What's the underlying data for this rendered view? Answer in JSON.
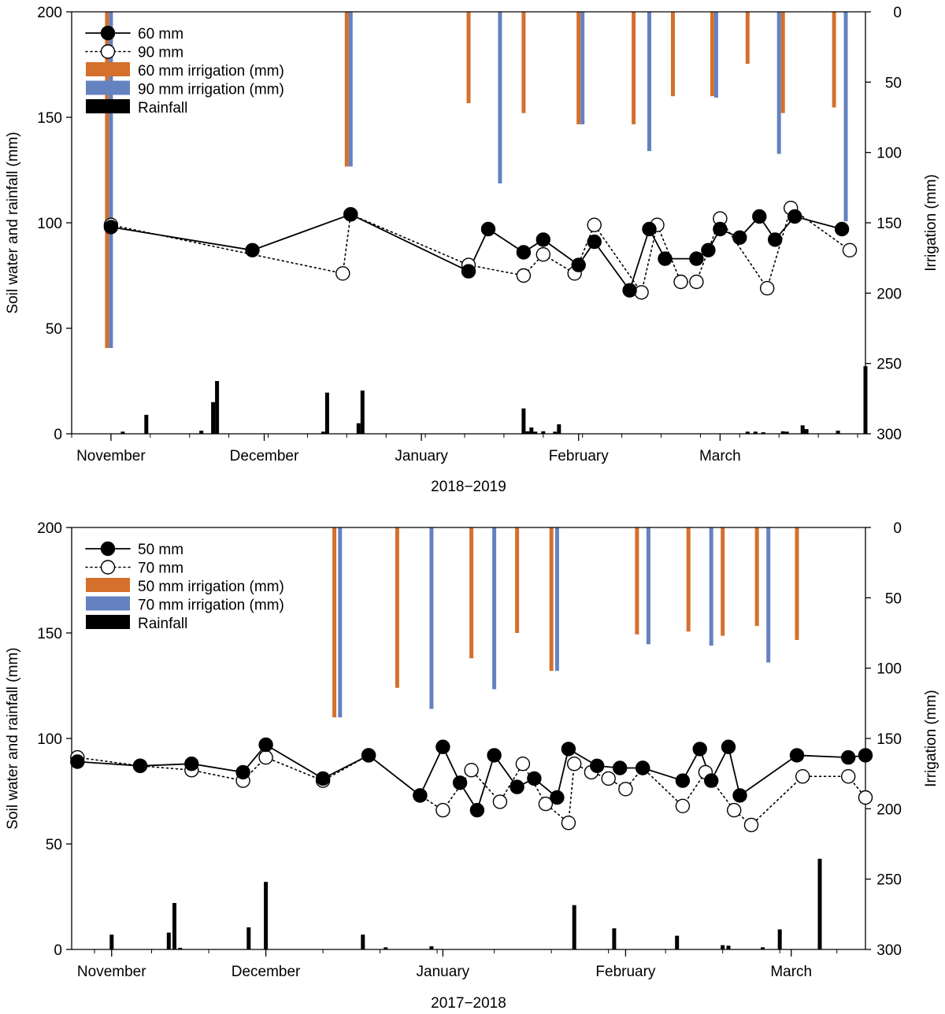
{
  "colors": {
    "orange": "#d4702c",
    "blue": "#6482c0",
    "black": "#000000"
  },
  "chart_data": [
    {
      "type": "line",
      "period_label": "2018−2019",
      "ylabel": "Soil water and rainfall (mm)",
      "y2label": "Irrigation (mm)",
      "ylim": [
        0,
        200
      ],
      "y2lim": [
        0,
        300
      ],
      "y2_inverted": true,
      "y_ticks": [
        "0",
        "50",
        "100",
        "150",
        "200"
      ],
      "y2_ticks": [
        "0",
        "50",
        "100",
        "150",
        "200",
        "250",
        "300"
      ],
      "x_day_range": [
        -10,
        192
      ],
      "month_ticks": [
        {
          "label": "November",
          "day": 0
        },
        {
          "label": "December",
          "day": 39
        },
        {
          "label": "January",
          "day": 79
        },
        {
          "label": "February",
          "day": 119
        },
        {
          "label": "March",
          "day": 155
        }
      ],
      "legend": {
        "position": "top-left",
        "entries": [
          "60 mm",
          "90 mm",
          "60 mm irrigation (mm)",
          "90 mm irrigation (mm)",
          "Rainfall"
        ]
      },
      "series": [
        {
          "name": "60 mm",
          "style": "solid-filled",
          "x": [
            0,
            36,
            61,
            91,
            96,
            105,
            110,
            119,
            123,
            132,
            137,
            141,
            149,
            152,
            155,
            160,
            165,
            169,
            174,
            186
          ],
          "y": [
            98,
            87,
            104,
            77,
            97,
            86,
            92,
            80,
            91,
            68,
            97,
            83,
            83,
            87,
            97,
            93,
            103,
            92,
            103,
            97
          ]
        },
        {
          "name": "90 mm",
          "style": "dotted-open",
          "x": [
            0,
            59,
            61,
            91,
            105,
            110,
            118,
            123,
            135,
            139,
            145,
            149,
            155,
            167,
            173,
            188
          ],
          "y": [
            99,
            76,
            104,
            80,
            75,
            85,
            76,
            99,
            67,
            99,
            72,
            72,
            102,
            69,
            107,
            87
          ]
        },
        {
          "name": "60 mm irrigation (mm)",
          "kind": "bar",
          "color": "orange",
          "x": [
            -1,
            60,
            91,
            105,
            119,
            133,
            143,
            153,
            162,
            171,
            184
          ],
          "y": [
            239,
            110,
            65,
            72,
            80,
            80,
            60,
            60,
            37,
            72,
            68
          ]
        },
        {
          "name": "90 mm irrigation (mm)",
          "kind": "bar",
          "color": "blue",
          "x": [
            0,
            61,
            99,
            120,
            137,
            154,
            170,
            187
          ],
          "y": [
            239,
            110,
            122,
            80,
            99,
            61,
            101,
            149
          ]
        },
        {
          "name": "Rainfall",
          "kind": "bar",
          "color": "black",
          "x": [
            3,
            9,
            23,
            26,
            27,
            54,
            55,
            63,
            64,
            105,
            106,
            107,
            108,
            110,
            113,
            114,
            162,
            164,
            166,
            171,
            172,
            176,
            177,
            185,
            192
          ],
          "y": [
            1,
            9,
            1.5,
            15,
            25,
            1,
            19.5,
            5,
            20.5,
            12,
            1.2,
            3,
            1,
            1.2,
            1,
            4.5,
            1,
            1,
            0.7,
            1.2,
            1,
            4,
            2.2,
            1.5,
            32
          ]
        }
      ]
    },
    {
      "type": "line",
      "period_label": "2017−2018",
      "ylabel": "Soil water and rainfall (mm)",
      "y2label": "Irrigation (mm)",
      "ylim": [
        0,
        200
      ],
      "y2lim": [
        0,
        300
      ],
      "y2_inverted": true,
      "y_ticks": [
        "0",
        "50",
        "100",
        "150",
        "200"
      ],
      "y2_ticks": [
        "0",
        "50",
        "100",
        "150",
        "200",
        "250",
        "300"
      ],
      "x_day_range": [
        -4,
        135
      ],
      "month_ticks": [
        {
          "label": "November",
          "day": 3
        },
        {
          "label": "December",
          "day": 30
        },
        {
          "label": "January",
          "day": 61
        },
        {
          "label": "February",
          "day": 93
        },
        {
          "label": "March",
          "day": 122
        }
      ],
      "legend": {
        "position": "top-left",
        "entries": [
          "50 mm",
          "70 mm",
          "50 mm irrigation (mm)",
          "70 mm irrigation (mm)",
          "Rainfall"
        ]
      },
      "series": [
        {
          "name": "50 mm",
          "style": "solid-filled",
          "x": [
            -3,
            8,
            17,
            26,
            30,
            40,
            48,
            57,
            61,
            64,
            67,
            70,
            74,
            77,
            81,
            83,
            88,
            92,
            96,
            103,
            106,
            108,
            111,
            113,
            123,
            132,
            135
          ],
          "y": [
            89,
            87,
            88,
            84,
            97,
            81,
            92,
            73,
            96,
            79,
            66,
            92,
            77,
            81,
            72,
            95,
            87,
            86,
            86,
            80,
            95,
            80,
            96,
            73,
            92,
            91,
            92
          ]
        },
        {
          "name": "70 mm",
          "style": "dotted-open",
          "x": [
            -3,
            8,
            17,
            26,
            30,
            40,
            48,
            57,
            61,
            66,
            71,
            75,
            79,
            83,
            84,
            87,
            90,
            93,
            96,
            103,
            107,
            112,
            115,
            124,
            132,
            135
          ],
          "y": [
            91,
            87,
            85,
            80,
            91,
            80,
            92,
            73,
            66,
            85,
            70,
            88,
            69,
            60,
            88,
            84,
            81,
            76,
            86,
            68,
            84,
            66,
            59,
            82,
            82,
            72
          ]
        },
        {
          "name": "50 mm irrigation (mm)",
          "kind": "bar",
          "color": "orange",
          "x": [
            42,
            53,
            66,
            74,
            80,
            95,
            104,
            110,
            116,
            123
          ],
          "y": [
            135,
            114,
            93,
            75,
            102,
            76,
            74,
            77,
            70,
            80
          ]
        },
        {
          "name": "70 mm irrigation (mm)",
          "kind": "bar",
          "color": "blue",
          "x": [
            43,
            59,
            70,
            81,
            97,
            108,
            118
          ],
          "y": [
            135,
            129,
            115,
            102,
            83,
            84,
            96
          ]
        },
        {
          "name": "Rainfall",
          "kind": "bar",
          "color": "black",
          "x": [
            3,
            13,
            14,
            15,
            27,
            30,
            47,
            51,
            59,
            84,
            91,
            102,
            110,
            111,
            117,
            120,
            127
          ],
          "y": [
            7,
            8,
            22,
            0.8,
            10.5,
            32,
            7,
            1,
            1.5,
            21,
            10,
            6.5,
            2,
            1.8,
            1,
            9.5,
            43
          ]
        }
      ]
    }
  ]
}
